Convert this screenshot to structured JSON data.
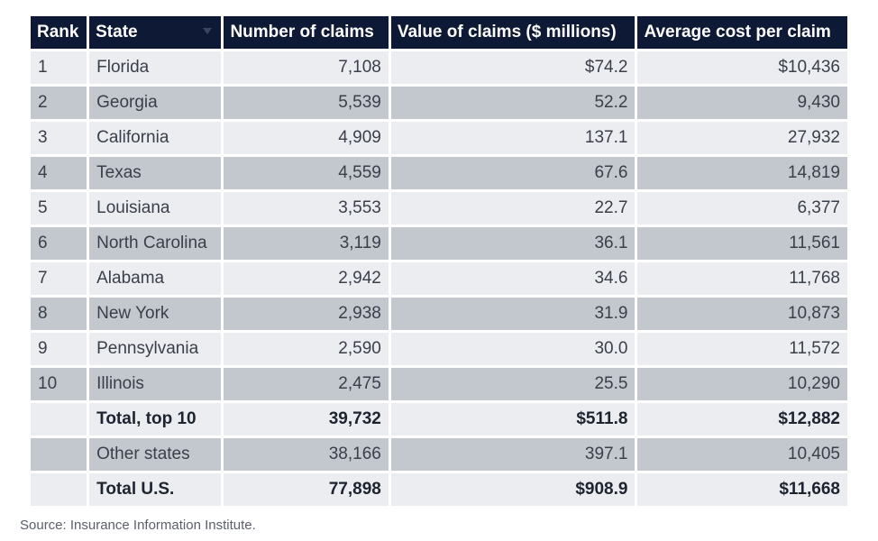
{
  "chart_data": {
    "type": "table",
    "columns": [
      "Rank",
      "State",
      "Number of claims",
      "Value of claims ($ millions)",
      "Average cost per claim"
    ],
    "rows": [
      [
        "1",
        "Florida",
        "7,108",
        "$74.2",
        "$10,436"
      ],
      [
        "2",
        "Georgia",
        "5,539",
        "52.2",
        "9,430"
      ],
      [
        "3",
        "California",
        "4,909",
        "137.1",
        "27,932"
      ],
      [
        "4",
        "Texas",
        "4,559",
        "67.6",
        "14,819"
      ],
      [
        "5",
        "Louisiana",
        "3,553",
        "22.7",
        "6,377"
      ],
      [
        "6",
        "North Carolina",
        "3,119",
        "36.1",
        "11,561"
      ],
      [
        "7",
        "Alabama",
        "2,942",
        "34.6",
        "11,768"
      ],
      [
        "8",
        "New York",
        "2,938",
        "31.9",
        "10,873"
      ],
      [
        "9",
        "Pennsylvania",
        "2,590",
        "30.0",
        "11,572"
      ],
      [
        "10",
        "Illinois",
        "2,475",
        "25.5",
        "10,290"
      ]
    ],
    "summary_rows": [
      [
        "",
        "Total, top 10",
        "39,732",
        "$511.8",
        "$12,882"
      ],
      [
        "",
        "Other states",
        "38,166",
        "397.1",
        "10,405"
      ],
      [
        "",
        "Total U.S.",
        "77,898",
        "$908.9",
        "$11,668"
      ]
    ]
  },
  "source_note": "Source: Insurance Information Institute."
}
